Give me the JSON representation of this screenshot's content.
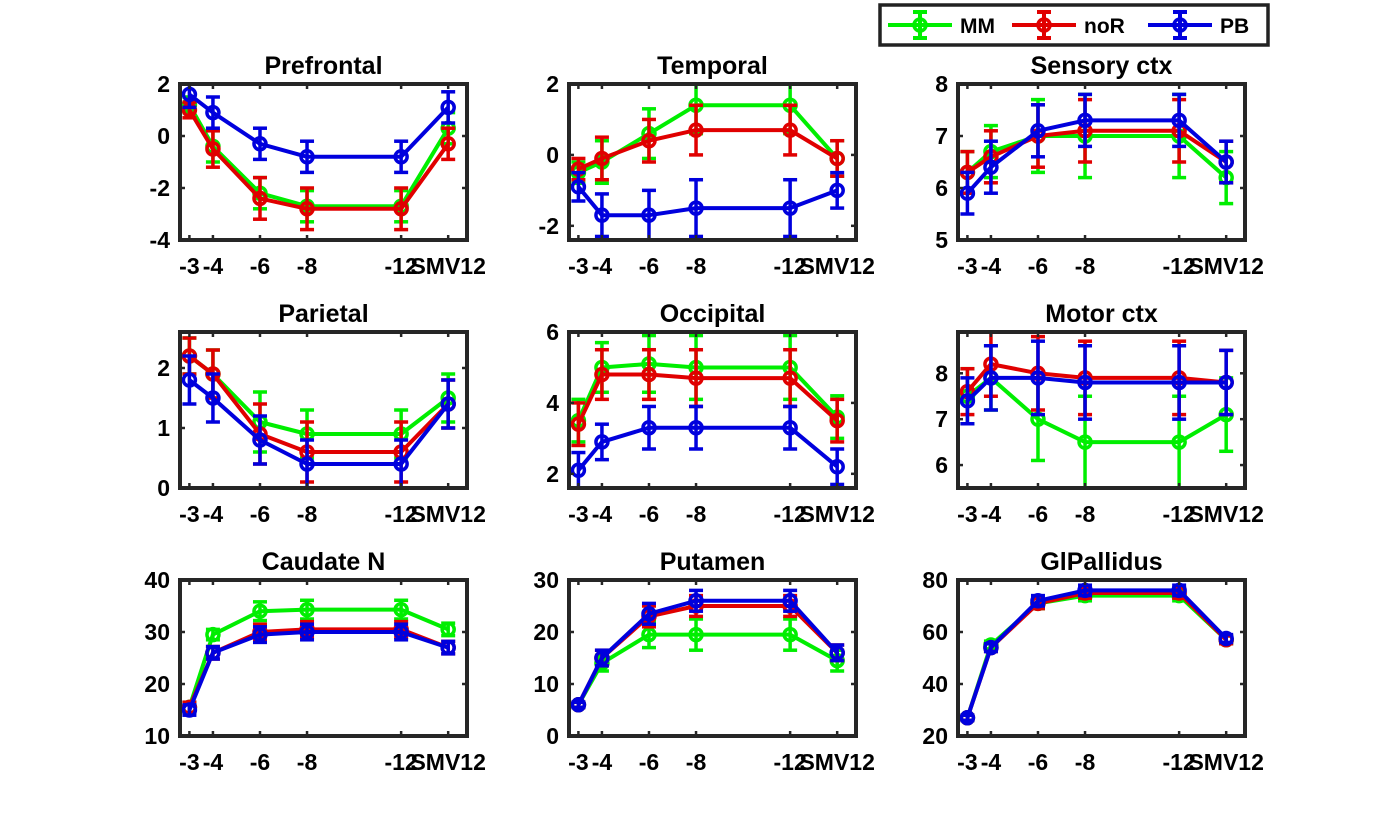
{
  "legend": [
    {
      "name": "MM",
      "color": "#00ee00"
    },
    {
      "name": "noR",
      "color": "#e00000"
    },
    {
      "name": "PB",
      "color": "#0000dd"
    }
  ],
  "chart_data": [
    {
      "type": "line",
      "title": "Prefrontal",
      "categories": [
        "-3",
        "-4",
        "-6",
        "-8",
        "-12",
        "SMV12"
      ],
      "x": [
        3,
        4,
        6,
        8,
        12,
        14
      ],
      "ylim": [
        -4,
        2
      ],
      "yticks": [
        -4,
        -2,
        0,
        2
      ],
      "series": [
        {
          "name": "MM",
          "color": "#00ee00",
          "values": [
            1.2,
            -0.4,
            -2.2,
            -2.7,
            -2.7,
            0.3
          ],
          "err": [
            0.3,
            0.6,
            0.6,
            0.6,
            0.6,
            0.6
          ]
        },
        {
          "name": "noR",
          "color": "#e00000",
          "values": [
            1.0,
            -0.5,
            -2.4,
            -2.8,
            -2.8,
            -0.3
          ],
          "err": [
            0.3,
            0.7,
            0.8,
            0.8,
            0.8,
            0.6
          ]
        },
        {
          "name": "PB",
          "color": "#0000dd",
          "values": [
            1.6,
            0.9,
            -0.3,
            -0.8,
            -0.8,
            1.1
          ],
          "err": [
            0.5,
            0.6,
            0.6,
            0.6,
            0.6,
            0.6
          ]
        }
      ]
    },
    {
      "type": "line",
      "title": "Temporal",
      "categories": [
        "-3",
        "-4",
        "-6",
        "-8",
        "-12",
        "SMV12"
      ],
      "x": [
        3,
        4,
        6,
        8,
        12,
        14
      ],
      "ylim": [
        -2.4,
        2
      ],
      "yticks": [
        -2,
        0,
        2
      ],
      "series": [
        {
          "name": "MM",
          "color": "#00ee00",
          "values": [
            -0.5,
            -0.2,
            0.6,
            1.4,
            1.4,
            -0.1
          ],
          "err": [
            0.3,
            0.6,
            0.7,
            0.8,
            0.8,
            0.5
          ]
        },
        {
          "name": "noR",
          "color": "#e00000",
          "values": [
            -0.4,
            -0.1,
            0.4,
            0.7,
            0.7,
            -0.1
          ],
          "err": [
            0.3,
            0.6,
            0.6,
            0.7,
            0.7,
            0.5
          ]
        },
        {
          "name": "PB",
          "color": "#0000dd",
          "values": [
            -0.9,
            -1.7,
            -1.7,
            -1.5,
            -1.5,
            -1.0
          ],
          "err": [
            0.4,
            0.6,
            0.7,
            0.8,
            0.8,
            0.5
          ]
        }
      ]
    },
    {
      "type": "line",
      "title": "Sensory ctx",
      "categories": [
        "-3",
        "-4",
        "-6",
        "-8",
        "-12",
        "SMV12"
      ],
      "x": [
        3,
        4,
        6,
        8,
        12,
        14
      ],
      "ylim": [
        5,
        8
      ],
      "yticks": [
        5,
        6,
        7,
        8
      ],
      "series": [
        {
          "name": "MM",
          "color": "#00ee00",
          "values": [
            6.3,
            6.7,
            7.0,
            7.0,
            7.0,
            6.2
          ],
          "err": [
            0.4,
            0.5,
            0.7,
            0.8,
            0.8,
            0.5
          ]
        },
        {
          "name": "noR",
          "color": "#e00000",
          "values": [
            6.3,
            6.6,
            7.0,
            7.1,
            7.1,
            6.5
          ],
          "err": [
            0.4,
            0.5,
            0.6,
            0.6,
            0.6,
            0.4
          ]
        },
        {
          "name": "PB",
          "color": "#0000dd",
          "values": [
            5.9,
            6.4,
            7.1,
            7.3,
            7.3,
            6.5
          ],
          "err": [
            0.4,
            0.5,
            0.5,
            0.5,
            0.5,
            0.4
          ]
        }
      ]
    },
    {
      "type": "line",
      "title": "Parietal",
      "categories": [
        "-3",
        "-4",
        "-6",
        "-8",
        "-12",
        "SMV12"
      ],
      "x": [
        3,
        4,
        6,
        8,
        12,
        14
      ],
      "ylim": [
        0,
        2.6
      ],
      "yticks": [
        0,
        1,
        2
      ],
      "series": [
        {
          "name": "MM",
          "color": "#00ee00",
          "values": [
            2.2,
            1.9,
            1.1,
            0.9,
            0.9,
            1.5
          ],
          "err": [
            0.3,
            0.4,
            0.5,
            0.4,
            0.4,
            0.4
          ]
        },
        {
          "name": "noR",
          "color": "#e00000",
          "values": [
            2.2,
            1.9,
            0.9,
            0.6,
            0.6,
            1.4
          ],
          "err": [
            0.3,
            0.4,
            0.5,
            0.5,
            0.5,
            0.4
          ]
        },
        {
          "name": "PB",
          "color": "#0000dd",
          "values": [
            1.8,
            1.5,
            0.8,
            0.4,
            0.4,
            1.4
          ],
          "err": [
            0.4,
            0.4,
            0.4,
            0.4,
            0.4,
            0.4
          ]
        }
      ]
    },
    {
      "type": "line",
      "title": "Occipital",
      "categories": [
        "-3",
        "-4",
        "-6",
        "-8",
        "-12",
        "SMV12"
      ],
      "x": [
        3,
        4,
        6,
        8,
        12,
        14
      ],
      "ylim": [
        1.6,
        6
      ],
      "yticks": [
        2,
        4,
        6
      ],
      "series": [
        {
          "name": "MM",
          "color": "#00ee00",
          "values": [
            3.5,
            5.0,
            5.1,
            5.0,
            5.0,
            3.6
          ],
          "err": [
            0.6,
            0.7,
            0.8,
            0.9,
            0.9,
            0.6
          ]
        },
        {
          "name": "noR",
          "color": "#e00000",
          "values": [
            3.4,
            4.8,
            4.8,
            4.7,
            4.7,
            3.5
          ],
          "err": [
            0.6,
            0.7,
            0.7,
            0.8,
            0.8,
            0.6
          ]
        },
        {
          "name": "PB",
          "color": "#0000dd",
          "values": [
            2.1,
            2.9,
            3.3,
            3.3,
            3.3,
            2.2
          ],
          "err": [
            0.5,
            0.5,
            0.6,
            0.6,
            0.6,
            0.5
          ]
        }
      ]
    },
    {
      "type": "line",
      "title": "Motor ctx",
      "categories": [
        "-3",
        "-4",
        "-6",
        "-8",
        "-12",
        "SMV12"
      ],
      "x": [
        3,
        4,
        6,
        8,
        12,
        14
      ],
      "ylim": [
        5.5,
        8.9
      ],
      "yticks": [
        6,
        7,
        8
      ],
      "series": [
        {
          "name": "MM",
          "color": "#00ee00",
          "values": [
            7.5,
            7.9,
            7.0,
            6.5,
            6.5,
            7.1
          ],
          "err": [
            0.6,
            0.7,
            0.9,
            1.0,
            1.0,
            0.8
          ]
        },
        {
          "name": "noR",
          "color": "#e00000",
          "values": [
            7.6,
            8.2,
            8.0,
            7.9,
            7.9,
            7.8
          ],
          "err": [
            0.5,
            0.7,
            0.8,
            0.8,
            0.8,
            0.7
          ]
        },
        {
          "name": "PB",
          "color": "#0000dd",
          "values": [
            7.4,
            7.9,
            7.9,
            7.8,
            7.8,
            7.8
          ],
          "err": [
            0.5,
            0.7,
            0.8,
            0.8,
            0.8,
            0.7
          ]
        }
      ]
    },
    {
      "type": "line",
      "title": "Caudate N",
      "categories": [
        "-3",
        "-4",
        "-6",
        "-8",
        "-12",
        "SMV12"
      ],
      "x": [
        3,
        4,
        6,
        8,
        12,
        14
      ],
      "ylim": [
        10,
        40
      ],
      "yticks": [
        10,
        20,
        30,
        40
      ],
      "series": [
        {
          "name": "MM",
          "color": "#00ee00",
          "values": [
            15.5,
            29.5,
            34,
            34.3,
            34.3,
            30.5
          ],
          "err": [
            1.0,
            1.0,
            1.8,
            1.8,
            1.8,
            1.2
          ]
        },
        {
          "name": "noR",
          "color": "#e00000",
          "values": [
            15.5,
            26,
            30,
            30.5,
            30.5,
            27
          ],
          "err": [
            1.0,
            1.2,
            1.5,
            1.5,
            1.5,
            1.2
          ]
        },
        {
          "name": "PB",
          "color": "#0000dd",
          "values": [
            15,
            26,
            29.5,
            30,
            30,
            27
          ],
          "err": [
            1.0,
            1.2,
            1.5,
            1.5,
            1.5,
            1.2
          ]
        }
      ]
    },
    {
      "type": "line",
      "title": "Putamen",
      "categories": [
        "-3",
        "-4",
        "-6",
        "-8",
        "-12",
        "SMV12"
      ],
      "x": [
        3,
        4,
        6,
        8,
        12,
        14
      ],
      "ylim": [
        0,
        30
      ],
      "yticks": [
        0,
        10,
        20,
        30
      ],
      "series": [
        {
          "name": "MM",
          "color": "#00ee00",
          "values": [
            6,
            14,
            19.5,
            19.5,
            19.5,
            14.5
          ],
          "err": [
            0.5,
            1.5,
            2.5,
            3.0,
            3.0,
            2.0
          ]
        },
        {
          "name": "noR",
          "color": "#e00000",
          "values": [
            6,
            15,
            23,
            25,
            25,
            16
          ],
          "err": [
            0.5,
            1.5,
            2.0,
            2.0,
            2.0,
            1.5
          ]
        },
        {
          "name": "PB",
          "color": "#0000dd",
          "values": [
            6,
            15,
            23.5,
            26,
            26,
            16
          ],
          "err": [
            0.5,
            1.5,
            2.0,
            2.0,
            2.0,
            1.5
          ]
        }
      ]
    },
    {
      "type": "line",
      "title": "GlPallidus",
      "categories": [
        "-3",
        "-4",
        "-6",
        "-8",
        "-12",
        "SMV12"
      ],
      "x": [
        3,
        4,
        6,
        8,
        12,
        14
      ],
      "ylim": [
        20,
        80
      ],
      "yticks": [
        20,
        40,
        60,
        80
      ],
      "series": [
        {
          "name": "MM",
          "color": "#00ee00",
          "values": [
            27,
            55,
            71,
            74,
            74,
            57
          ],
          "err": [
            1.0,
            1.5,
            2.0,
            2.0,
            2.0,
            1.5
          ]
        },
        {
          "name": "noR",
          "color": "#e00000",
          "values": [
            27,
            54,
            71,
            75,
            75,
            57
          ],
          "err": [
            1.0,
            1.5,
            2.0,
            2.0,
            2.0,
            1.5
          ]
        },
        {
          "name": "PB",
          "color": "#0000dd",
          "values": [
            27,
            54,
            72,
            76,
            76,
            57.5
          ],
          "err": [
            1.0,
            1.5,
            2.0,
            2.0,
            2.0,
            1.5
          ]
        }
      ]
    }
  ]
}
